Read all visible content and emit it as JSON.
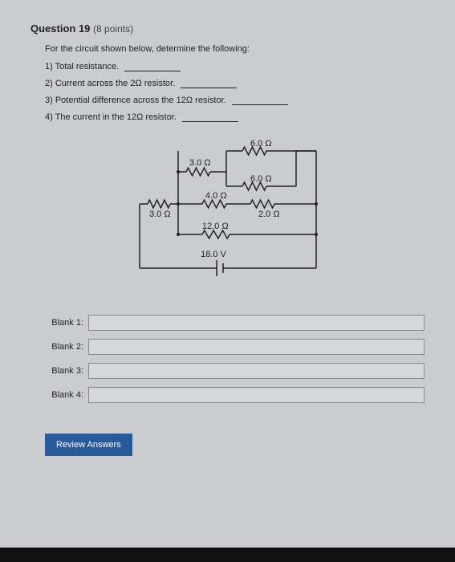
{
  "question": {
    "number": "Question 19",
    "points": "(8 points)",
    "stem": "For the circuit shown below, determine the following:",
    "parts": [
      "1) Total resistance.",
      "2) Current across the 2Ω resistor.",
      "3) Potential difference across the 12Ω resistor.",
      "4) The current in the 12Ω resistor."
    ]
  },
  "circuit": {
    "labels": {
      "r3a": "3.0 Ω",
      "r3b": "3.0 Ω",
      "r6a": "6.0 Ω",
      "r6b": "6.0 Ω",
      "r4": "4.0 Ω",
      "r2": "2.0 Ω",
      "r12": "12.0 Ω",
      "v": "18.0 V"
    },
    "colors": {
      "wire": "#222222",
      "text": "#222222",
      "bg": "#cacccf"
    },
    "stroke_width": 1.5,
    "font_size": 11
  },
  "blanks": [
    {
      "label": "Blank 1:",
      "value": ""
    },
    {
      "label": "Blank 2:",
      "value": ""
    },
    {
      "label": "Blank 3:",
      "value": ""
    },
    {
      "label": "Blank 4:",
      "value": ""
    }
  ],
  "button": {
    "review": "Review Answers"
  }
}
